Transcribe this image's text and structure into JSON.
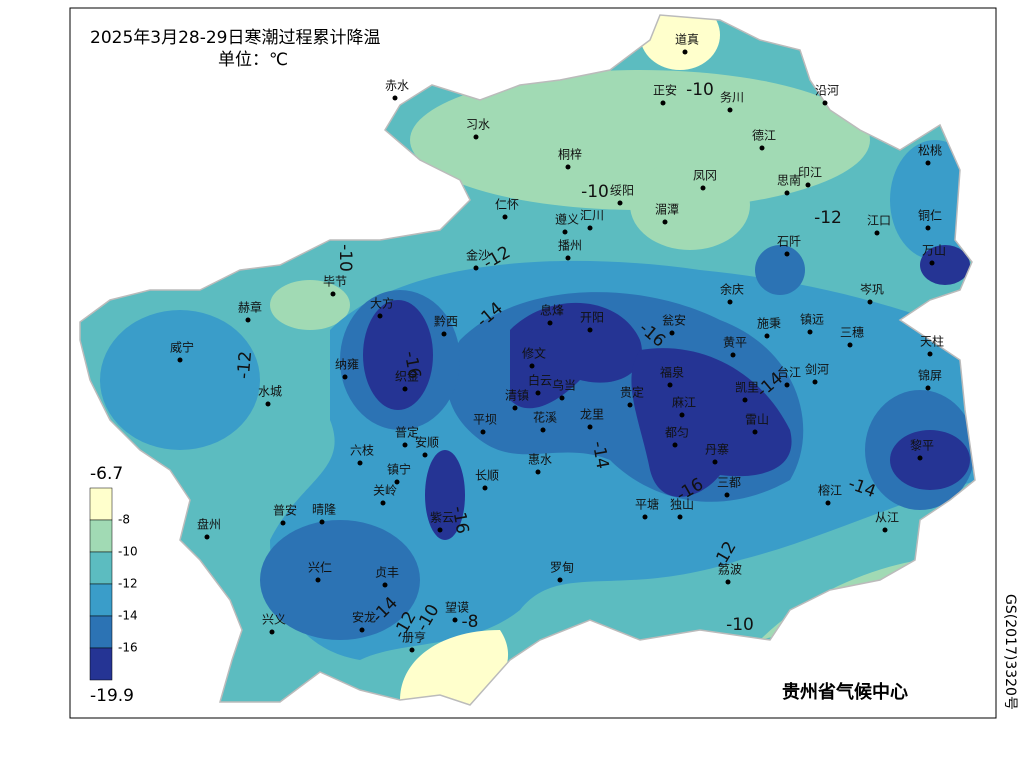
{
  "title": "2025年3月28-29日寒潮过程累计降温",
  "unit": "单位：℃",
  "credit": "贵州省气候中心",
  "map_number": "GS(2017)3320号",
  "legend": {
    "max": "-6.7",
    "min": "-19.9",
    "ticks": [
      "-8",
      "-10",
      "-12",
      "-14",
      "-16"
    ],
    "colors": [
      "#ffffcc",
      "#a1dab4",
      "#5cbcc0",
      "#3a9dc9",
      "#2c73b4",
      "#253494"
    ]
  },
  "cities": [
    "道真",
    "赤水",
    "正安",
    "务川",
    "沿河",
    "习水",
    "德江",
    "桐梓",
    "松桃",
    "凤冈",
    "印江",
    "思南",
    "绥阳",
    "湄潭",
    "仁怀",
    "遵义",
    "汇川",
    "江口",
    "铜仁",
    "石阡",
    "金沙",
    "播州",
    "万山",
    "毕节",
    "赫章",
    "大方",
    "黔西",
    "息烽",
    "开阳",
    "余庆",
    "岑巩",
    "施秉",
    "镇远",
    "三穗",
    "威宁",
    "修文",
    "瓮安",
    "黄平",
    "天柱",
    "纳雍",
    "织金",
    "白云",
    "乌当",
    "福泉",
    "台江",
    "剑河",
    "锦屏",
    "水城",
    "清镇",
    "贵定",
    "凯里",
    "麻江",
    "花溪",
    "龙里",
    "雷山",
    "平坝",
    "普定",
    "安顺",
    "都匀",
    "丹寨",
    "黎平",
    "六枝",
    "惠水",
    "镇宁",
    "长顺",
    "关岭",
    "三都",
    "榕江",
    "紫云",
    "平塘",
    "独山",
    "从江",
    "盘州",
    "普安",
    "晴隆",
    "兴仁",
    "贞丰",
    "罗甸",
    "荔波",
    "兴义",
    "安龙",
    "望谟",
    "册亨"
  ],
  "contour_labels": [
    "-10",
    "-10",
    "-12",
    "-12",
    "-10",
    "-14",
    "-16",
    "-16",
    "-12",
    "-14",
    "-14",
    "-16",
    "-16",
    "-14",
    "-12",
    "-14",
    "-12",
    "-10",
    "-8",
    "-10"
  ]
}
